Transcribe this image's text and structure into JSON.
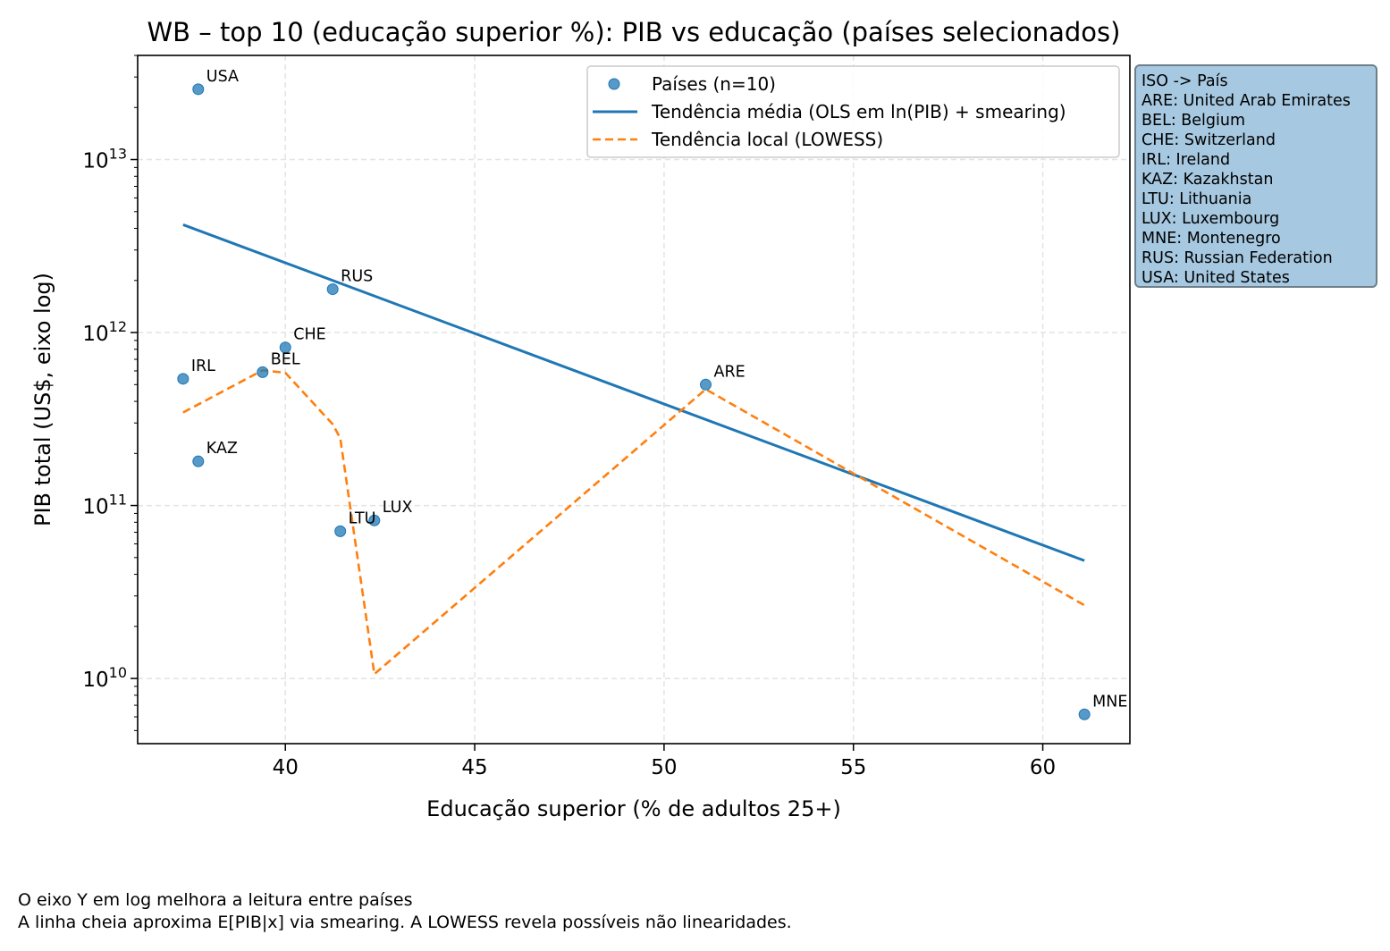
{
  "chart_data": {
    "type": "scatter",
    "title": "WB – top 10 (educação superior %): PIB vs educação (países selecionados)",
    "xlabel": "Educação superior (% de adultos 25+)",
    "ylabel": "PIB total (US$, eixo log)",
    "xlim": [
      36.1,
      62.3
    ],
    "ylim": [
      4200000000.0,
      40000000000000.0
    ],
    "yscale": "log",
    "grid": true,
    "x_ticks": [
      40,
      45,
      50,
      55,
      60
    ],
    "x_tick_labels": [
      "40",
      "45",
      "50",
      "55",
      "60"
    ],
    "y_ticks": [
      10000000000.0,
      100000000000.0,
      1000000000000.0,
      10000000000000.0
    ],
    "y_tick_labels": [
      {
        "base": "10",
        "exp": "10"
      },
      {
        "base": "10",
        "exp": "11"
      },
      {
        "base": "10",
        "exp": "12"
      },
      {
        "base": "10",
        "exp": "13"
      }
    ],
    "legend_position": "top-right",
    "points": [
      {
        "label": "USA",
        "x": 37.7,
        "y": 25500000000000.0
      },
      {
        "label": "RUS",
        "x": 41.25,
        "y": 1780000000000.0
      },
      {
        "label": "CHE",
        "x": 40.0,
        "y": 820000000000.0
      },
      {
        "label": "IRL",
        "x": 37.3,
        "y": 540000000000.0
      },
      {
        "label": "BEL",
        "x": 39.4,
        "y": 590000000000.0
      },
      {
        "label": "ARE",
        "x": 51.1,
        "y": 500000000000.0
      },
      {
        "label": "KAZ",
        "x": 37.7,
        "y": 180000000000.0
      },
      {
        "label": "LUX",
        "x": 42.35,
        "y": 82000000000.0
      },
      {
        "label": "LTU",
        "x": 41.45,
        "y": 71000000000.0
      },
      {
        "label": "MNE",
        "x": 61.1,
        "y": 6200000000.0
      }
    ],
    "series": [
      {
        "name": "Países (n=10)",
        "kind": "scatter",
        "color": "#1f77b4"
      },
      {
        "name": "Tendência média (OLS em ln(PIB) + smearing)",
        "kind": "line",
        "color": "#1f77b4",
        "x": [
          37.3,
          61.1
        ],
        "y": [
          4200000000000.0,
          48000000000.0
        ]
      },
      {
        "name": "Tendência local (LOWESS)",
        "kind": "dashed-line",
        "color": "#ff7f0e",
        "x": [
          37.3,
          39.4,
          40.0,
          41.25,
          41.45,
          42.35,
          51.1,
          61.1
        ],
        "y": [
          345000000000.0,
          605000000000.0,
          585000000000.0,
          295000000000.0,
          245000000000.0,
          10600000000.0,
          470000000000.0,
          26500000000.0
        ]
      }
    ]
  },
  "iso_box": {
    "lines": [
      "ISO -> País",
      "ARE: United Arab Emirates",
      "BEL: Belgium",
      "CHE: Switzerland",
      "IRL: Ireland",
      "KAZ: Kazakhstan",
      "LTU: Lithuania",
      "LUX: Luxembourg",
      "MNE: Montenegro",
      "RUS: Russian Federation",
      "USA: United States"
    ]
  },
  "footnotes": [
    "O eixo Y em log melhora a leitura entre países",
    "A linha cheia aproxima E[PIB|x] via smearing. A LOWESS revela possíveis não linearidades."
  ]
}
